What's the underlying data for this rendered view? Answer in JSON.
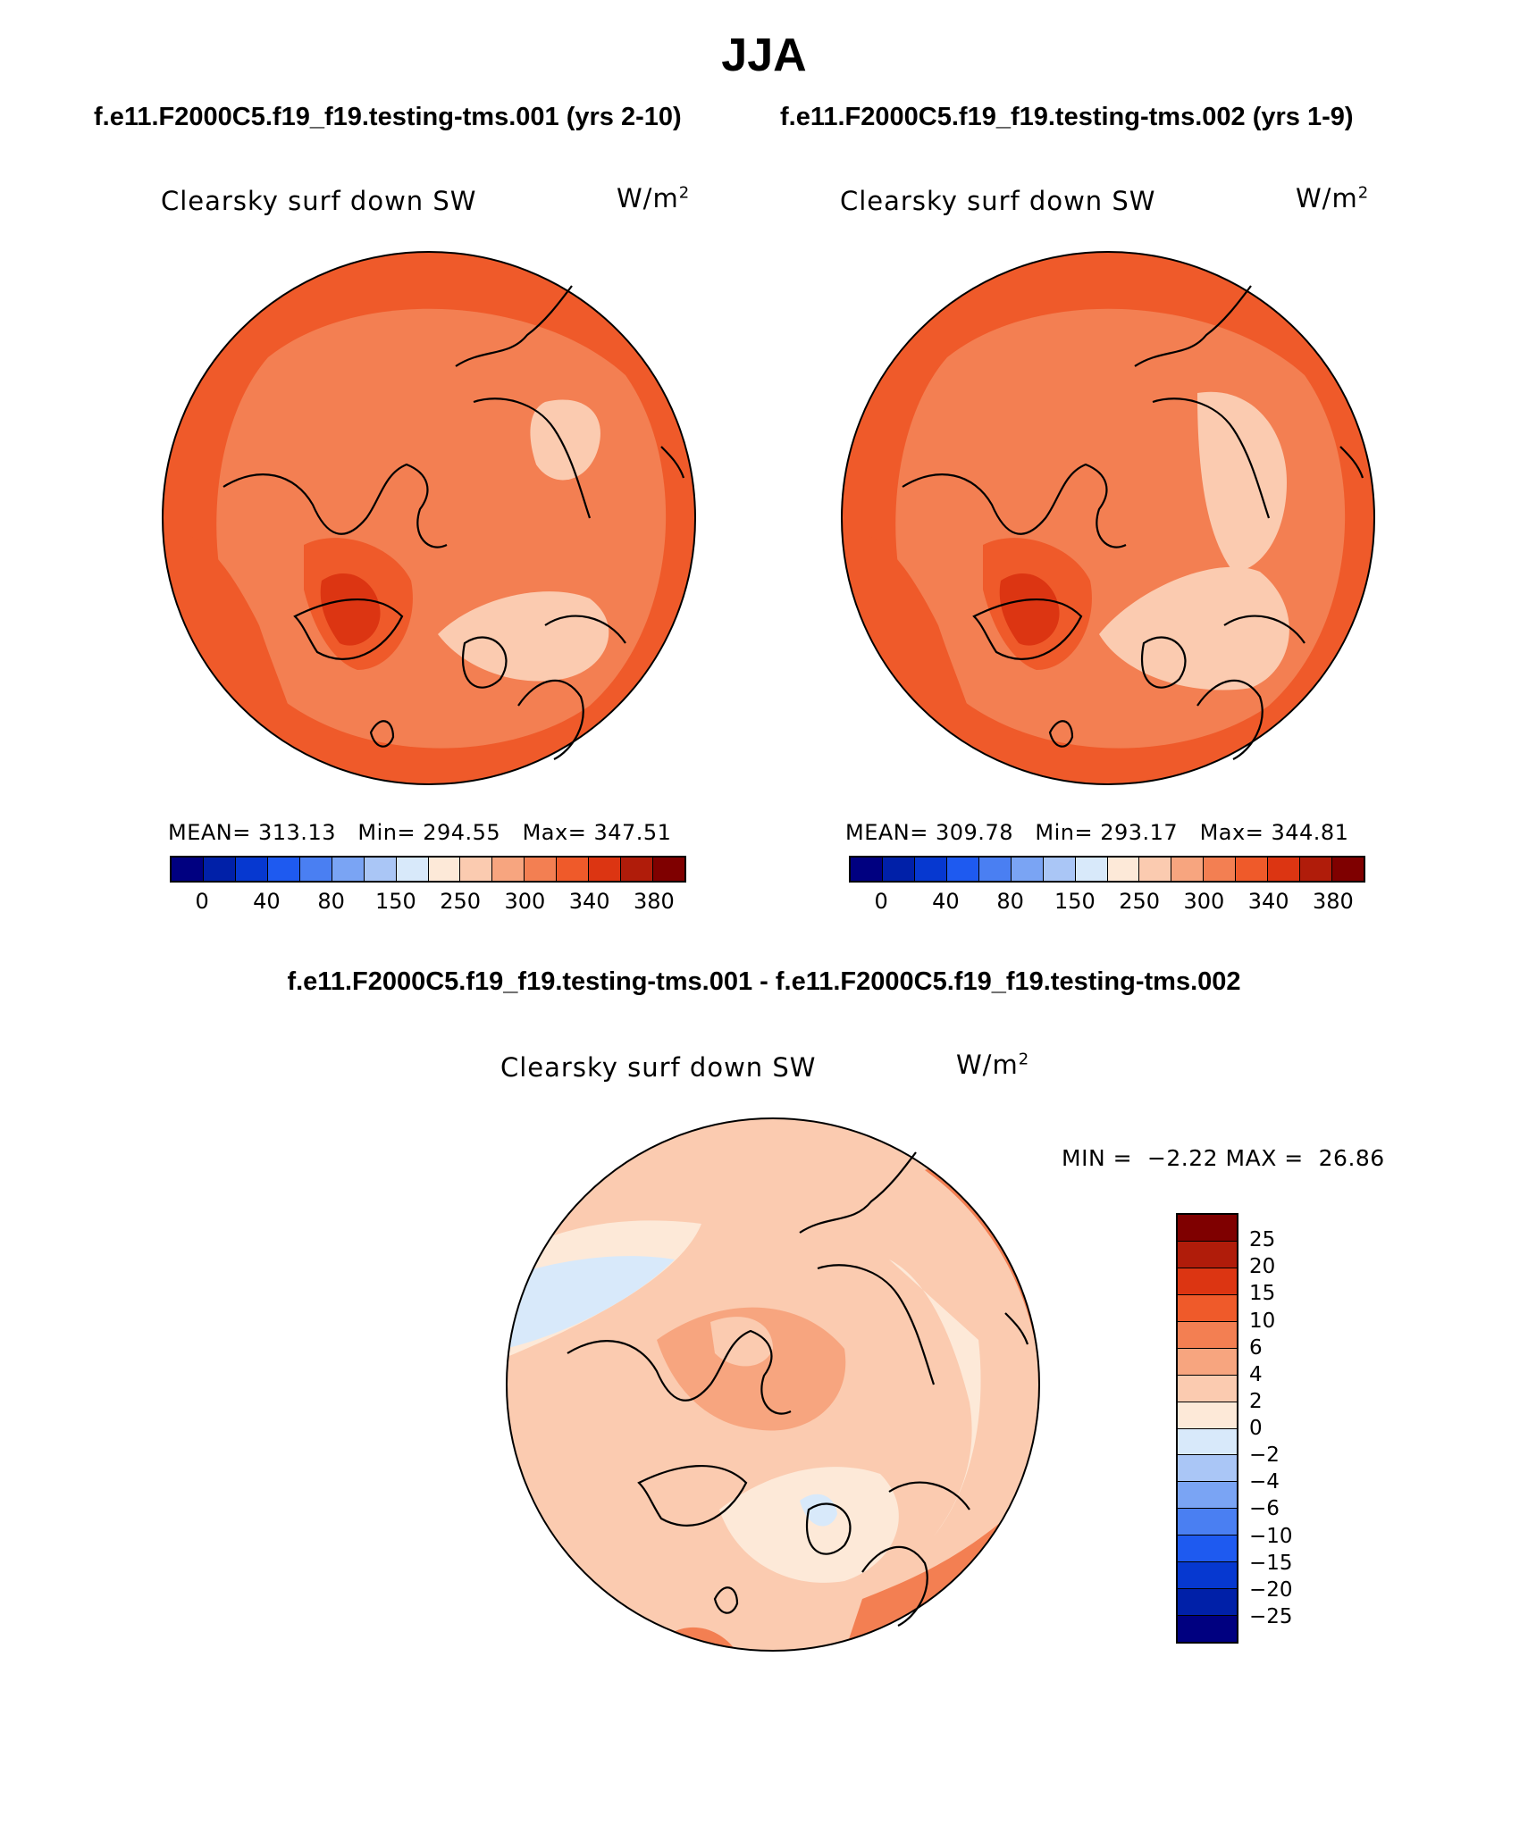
{
  "title": "JJA",
  "panels": [
    {
      "run_label": "f.e11.F2000C5.f19_f19.testing-tms.001 (yrs 2-10)",
      "variable": "Clearsky surf down SW",
      "units_base": "W/m",
      "units_exp": "2",
      "mean_label": "MEAN=",
      "mean": "313.13",
      "min_label": "Min=",
      "min": "294.55",
      "max_label": "Max=",
      "max": "347.51"
    },
    {
      "run_label": "f.e11.F2000C5.f19_f19.testing-tms.002 (yrs 1-9)",
      "variable": "Clearsky surf down SW",
      "units_base": "W/m",
      "units_exp": "2",
      "mean_label": "MEAN=",
      "mean": "309.78",
      "min_label": "Min=",
      "min": "293.17",
      "max_label": "Max=",
      "max": "344.81"
    }
  ],
  "diff": {
    "title": "f.e11.F2000C5.f19_f19.testing-tms.001 - f.e11.F2000C5.f19_f19.testing-tms.002",
    "variable": "Clearsky surf down SW",
    "units_base": "W/m",
    "units_exp": "2",
    "min_label": "MIN =",
    "min": "−2.22",
    "max_label": "MAX =",
    "max": "26.86"
  },
  "colorbar_abs": {
    "colors": [
      "#000080",
      "#0020a8",
      "#0638d0",
      "#1e5af0",
      "#4a7ff2",
      "#7aa4f4",
      "#aac6f6",
      "#d8e9fa",
      "#fde9d8",
      "#fbcbb0",
      "#f7a57f",
      "#f37f52",
      "#ef5a2a",
      "#dc3512",
      "#b01c0a",
      "#7f0000"
    ],
    "ticks": [
      "0",
      "40",
      "80",
      "150",
      "250",
      "300",
      "340",
      "380"
    ]
  },
  "colorbar_diff": {
    "colors": [
      "#7f0000",
      "#b01c0a",
      "#dc3512",
      "#ef5a2a",
      "#f37f52",
      "#f7a57f",
      "#fbcbb0",
      "#fde9d8",
      "#d8e9fa",
      "#aac6f6",
      "#7aa4f4",
      "#4a7ff2",
      "#1e5af0",
      "#0638d0",
      "#0020a8",
      "#000080"
    ],
    "ticks": [
      "25",
      "20",
      "15",
      "10",
      "6",
      "4",
      "2",
      "0",
      "−2",
      "−4",
      "−6",
      "−10",
      "−15",
      "−20",
      "−25"
    ]
  },
  "chart_data": [
    {
      "type": "heatmap",
      "title": "Clearsky surf down SW",
      "subtitle": "f.e11.F2000C5.f19_f19.testing-tms.001 (yrs 2-10)",
      "units": "W/m2",
      "projection": "north polar stereographic",
      "stats": {
        "mean": 313.13,
        "min": 294.55,
        "max": 347.51
      },
      "contour_levels": [
        0,
        40,
        80,
        150,
        250,
        300,
        340,
        380
      ]
    },
    {
      "type": "heatmap",
      "title": "Clearsky surf down SW",
      "subtitle": "f.e11.F2000C5.f19_f19.testing-tms.002 (yrs 1-9)",
      "units": "W/m2",
      "projection": "north polar stereographic",
      "stats": {
        "mean": 309.78,
        "min": 293.17,
        "max": 344.81
      },
      "contour_levels": [
        0,
        40,
        80,
        150,
        250,
        300,
        340,
        380
      ]
    },
    {
      "type": "heatmap",
      "title": "Clearsky surf down SW",
      "subtitle": "f.e11.F2000C5.f19_f19.testing-tms.001 - f.e11.F2000C5.f19_f19.testing-tms.002",
      "units": "W/m2",
      "projection": "north polar stereographic",
      "stats": {
        "min": -2.22,
        "max": 26.86
      },
      "contour_levels": [
        -25,
        -20,
        -15,
        -10,
        -6,
        -4,
        -2,
        0,
        2,
        4,
        6,
        10,
        15,
        20,
        25
      ]
    }
  ]
}
